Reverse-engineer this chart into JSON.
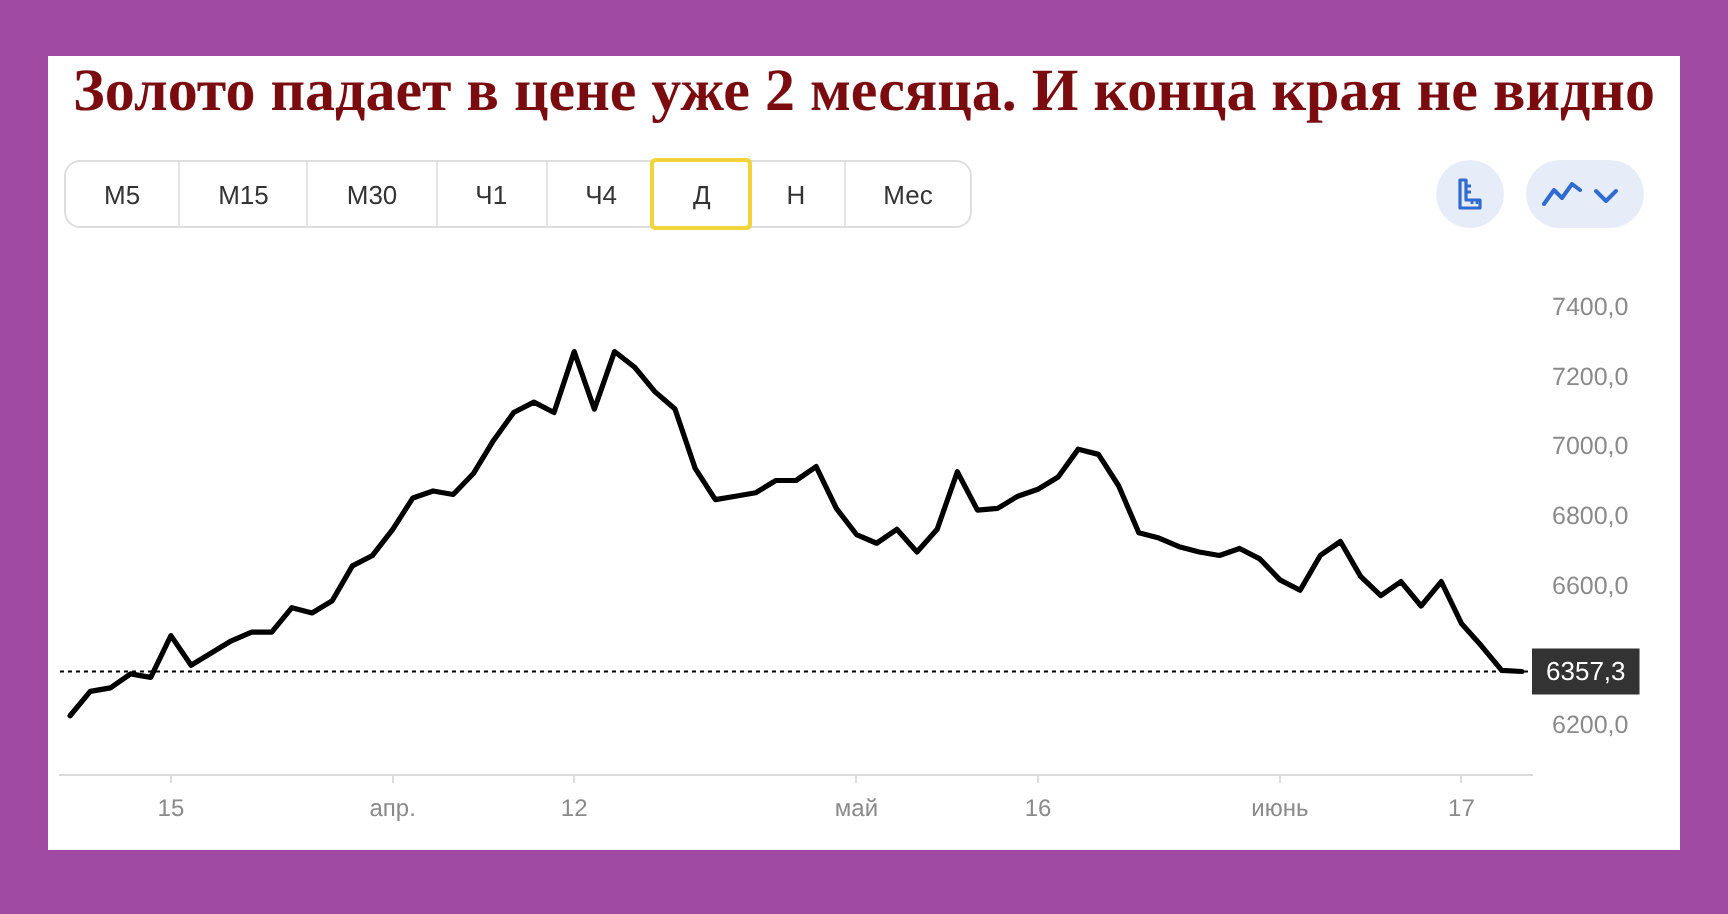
{
  "chart_data": {
    "type": "line",
    "title": "Золото падает в цене уже 2 месяца. И конца края не видно",
    "annotations": [
      "М5",
      "М15",
      "М30",
      "Ч1",
      "Ч4",
      "Д",
      "Н",
      "Мес"
    ],
    "categories": [
      null,
      null,
      null,
      null,
      null,
      "15",
      null,
      null,
      null,
      null,
      null,
      null,
      null,
      null,
      null,
      null,
      "апр.",
      null,
      null,
      null,
      null,
      null,
      null,
      null,
      null,
      "12",
      null,
      null,
      null,
      null,
      null,
      null,
      null,
      null,
      null,
      null,
      null,
      null,
      null,
      "май",
      null,
      null,
      null,
      null,
      null,
      null,
      null,
      null,
      "16",
      null,
      null,
      null,
      null,
      null,
      null,
      null,
      null,
      null,
      null,
      null,
      "июнь",
      null,
      null,
      null,
      null,
      null,
      null,
      null,
      null,
      "17",
      null,
      null,
      null
    ],
    "values": [
      6230,
      6300,
      6310,
      6350,
      6340,
      6460,
      6375,
      6410,
      6445,
      6470,
      6470,
      6540,
      6525,
      6560,
      6660,
      6690,
      6765,
      6855,
      6875,
      6865,
      6925,
      7020,
      7100,
      7130,
      7100,
      7275,
      7110,
      7275,
      7230,
      7160,
      7110,
      6940,
      6850,
      6860,
      6870,
      6905,
      6905,
      6945,
      6825,
      6750,
      6725,
      6765,
      6700,
      6765,
      6930,
      6820,
      6825,
      6860,
      6880,
      6915,
      6995,
      6980,
      6890,
      6755,
      6740,
      6715,
      6700,
      6690,
      6710,
      6680,
      6620,
      6590,
      6690,
      6730,
      6630,
      6575,
      6615,
      6545,
      6615,
      6495,
      6430,
      6360,
      6357
    ],
    "color": "#000000",
    "ylim": [
      6060,
      7400
    ],
    "yticks": [
      {
        "value": 6200,
        "label": "6200,0"
      },
      {
        "value": 6600,
        "label": "6600,0"
      },
      {
        "value": 6800,
        "label": "6800,0"
      },
      {
        "value": 7000,
        "label": "7000,0"
      },
      {
        "value": 7200,
        "label": "7200,0"
      },
      {
        "value": 7400,
        "label": "7400,0"
      }
    ],
    "ref_lines": [
      {
        "axis": "y",
        "value": 6357.3,
        "label": "6357,3",
        "line_style": "dotted",
        "color": "#000000"
      }
    ]
  }
}
